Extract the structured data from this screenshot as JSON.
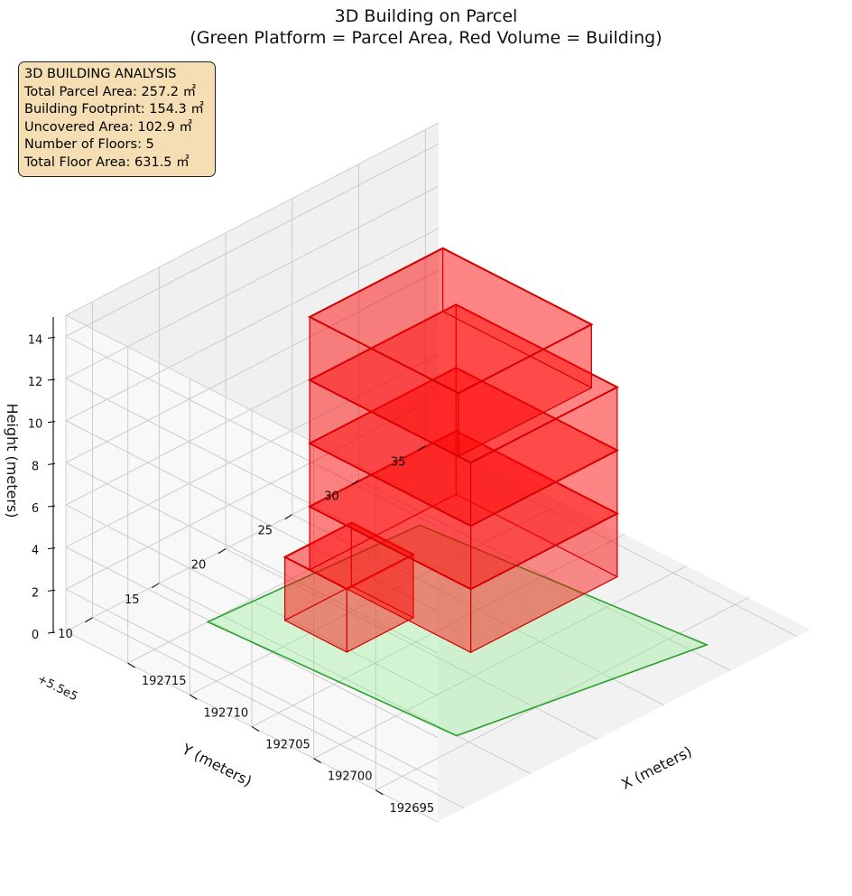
{
  "title": {
    "line1": "3D Building on Parcel",
    "line2": "(Green Platform = Parcel Area, Red Volume = Building)"
  },
  "stats": {
    "heading": "3D BUILDING ANALYSIS",
    "lines": [
      "Total Parcel Area: 257.2 ㎡",
      "Building Footprint: 154.3 ㎡",
      "Uncovered Area: 102.9 ㎡",
      "Number of Floors: 5",
      "Total Floor Area: 631.5 ㎡"
    ]
  },
  "colors": {
    "parcel_face": "#90ee90",
    "parcel_edge": "#2ca02c",
    "building_face": "#ff0000",
    "building_edge": "#d40000"
  },
  "chart_data": {
    "type": "3d-polygons",
    "xlabel": "X (meters)",
    "ylabel": "Y (meters)",
    "zlabel": "Height (meters)",
    "y_offset_label": "+5.5e5",
    "x_ticks": [
      192695,
      192700,
      192705,
      192710,
      192715
    ],
    "y_ticks": [
      10,
      15,
      20,
      25,
      30,
      35
    ],
    "z_ticks": [
      0,
      2,
      4,
      6,
      8,
      10,
      12,
      14
    ],
    "xlim": [
      192690,
      192720
    ],
    "ylim": [
      550008,
      550036
    ],
    "zlim": [
      0,
      15
    ],
    "grid": true,
    "parcel": {
      "name": "Parcel Area",
      "z": 0,
      "polygon": [
        [
          192693,
          550031
        ],
        [
          192714,
          550029
        ],
        [
          192715,
          550014
        ],
        [
          192696,
          550015
        ]
      ]
    },
    "floors": [
      {
        "floor": 1,
        "z0": 0,
        "z1": 3,
        "polygon": [
          [
            192707,
            550022
          ],
          [
            192712,
            550022
          ],
          [
            192712,
            550017
          ],
          [
            192707,
            550017
          ]
        ]
      },
      {
        "floor": 2,
        "z0": 3,
        "z1": 6,
        "polygon": [
          [
            192697,
            550028
          ],
          [
            192710,
            550028
          ],
          [
            192710,
            550017
          ],
          [
            192697,
            550017
          ]
        ]
      },
      {
        "floor": 3,
        "z0": 6,
        "z1": 9,
        "polygon": [
          [
            192697,
            550028
          ],
          [
            192710,
            550028
          ],
          [
            192710,
            550017
          ],
          [
            192697,
            550017
          ]
        ]
      },
      {
        "floor": 4,
        "z0": 9,
        "z1": 12,
        "polygon": [
          [
            192697,
            550028
          ],
          [
            192710,
            550028
          ],
          [
            192710,
            550017
          ],
          [
            192697,
            550017
          ]
        ]
      },
      {
        "floor": 5,
        "z0": 12,
        "z1": 15,
        "polygon": [
          [
            192698,
            550027
          ],
          [
            192710,
            550027
          ],
          [
            192710,
            550017
          ],
          [
            192698,
            550017
          ]
        ]
      }
    ]
  }
}
